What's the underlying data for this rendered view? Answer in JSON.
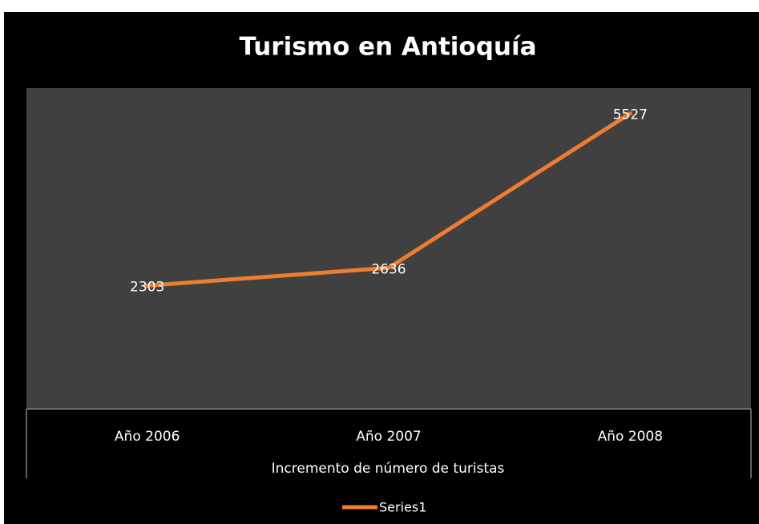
{
  "chart_data": {
    "type": "line",
    "title": "Turismo en Antioquía",
    "x_label": "Incremento de número de turistas",
    "categories": [
      "Año 2006",
      "Año 2007",
      "Año 2008"
    ],
    "series": [
      {
        "name": "Series1",
        "color": "#ed7d31",
        "values": [
          2303,
          2636,
          5527
        ]
      }
    ],
    "ylim": [
      0,
      6000
    ],
    "legend": "bottom"
  }
}
